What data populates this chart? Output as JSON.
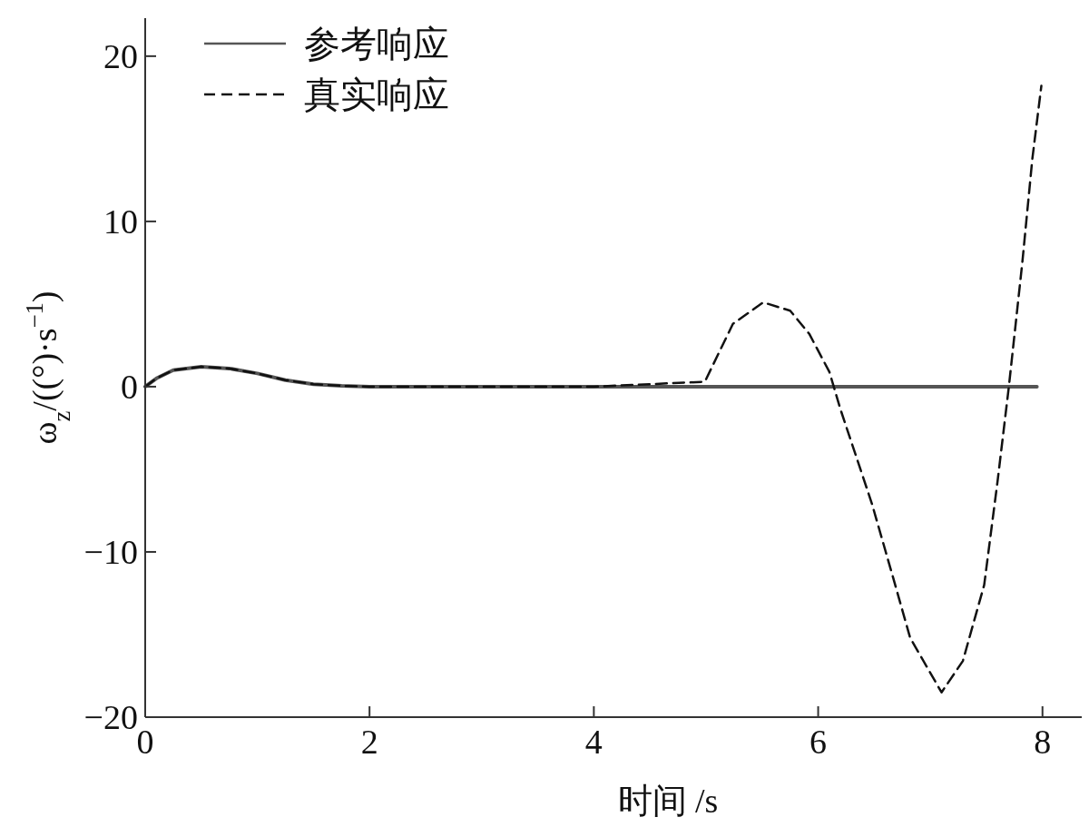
{
  "chart_data": {
    "type": "line",
    "xlabel": "时间 /s",
    "ylabel": "ω$_{z}$/((°)·s$^{−1}$)",
    "xlim": [
      0,
      8.35
    ],
    "ylim": [
      -20,
      22.3
    ],
    "xticks": [
      0,
      2,
      4,
      6,
      8
    ],
    "yticks": [
      {
        "value": -20,
        "label": "−20"
      },
      {
        "value": -10,
        "label": "−10"
      },
      0,
      10,
      20
    ],
    "grid": false,
    "legend": "top left",
    "marker": "none",
    "series": [
      {
        "name": "参考响应",
        "color": "#555555",
        "line_style": "solid",
        "x": [
          0,
          0.1,
          0.25,
          0.5,
          0.75,
          1.0,
          1.25,
          1.5,
          1.75,
          2,
          3,
          4,
          5,
          6,
          7,
          7.95
        ],
        "values": [
          0,
          0.5,
          1.0,
          1.2,
          1.1,
          0.8,
          0.4,
          0.15,
          0.05,
          0,
          0,
          0,
          0,
          0,
          0,
          0
        ]
      },
      {
        "name": "真实响应",
        "color": "#111111",
        "line_style": "dashed",
        "x": [
          0,
          0.1,
          0.25,
          0.5,
          0.75,
          1.0,
          1.25,
          1.5,
          1.75,
          2,
          3,
          4,
          4.99,
          5.24,
          5.51,
          5.75,
          5.92,
          6.1,
          6.2,
          6.48,
          6.67,
          6.82,
          7.1,
          7.29,
          7.48,
          7.6,
          7.7,
          7.82,
          7.91,
          7.99
        ],
        "values": [
          0,
          0.5,
          1.0,
          1.2,
          1.1,
          0.8,
          0.4,
          0.15,
          0.05,
          0,
          0,
          0,
          0.3,
          3.8,
          5.1,
          4.6,
          3.2,
          0.9,
          -1.4,
          -7.1,
          -11.6,
          -15.2,
          -18.5,
          -16.6,
          -12.0,
          -5.7,
          0,
          7.5,
          13.8,
          18.2
        ]
      }
    ]
  }
}
